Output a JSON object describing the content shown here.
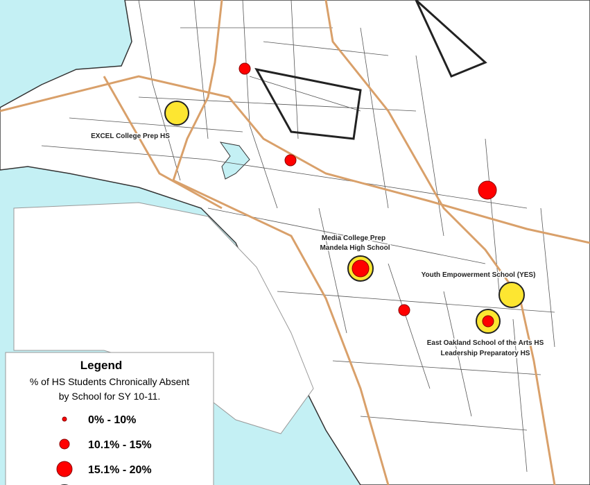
{
  "map_labels": [
    "EXCEL College Prep HS",
    "Media College Prep",
    "Mandela High School",
    "Youth Empowerment School (YES)",
    "East Oakland School of the Arts HS",
    "Leadership Preparatory HS"
  ],
  "legend": {
    "title": "Legend",
    "subtitle": [
      "% of HS Students Chronically Absent",
      "by School for SY 10-11."
    ],
    "items": [
      "0% - 10%",
      "10.1% - 15%",
      "15.1% - 20%"
    ]
  }
}
